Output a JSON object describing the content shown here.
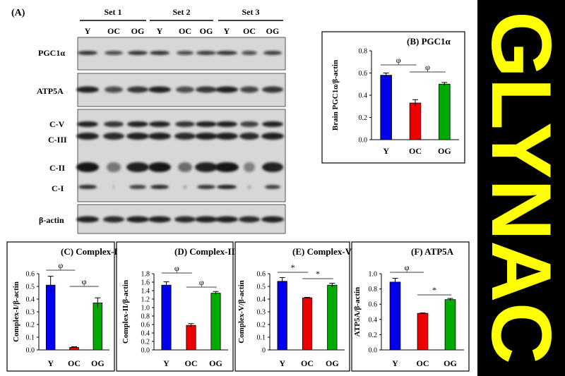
{
  "panel_a_label": "(A)",
  "set_labels": [
    "Set 1",
    "Set 2",
    "Set 3"
  ],
  "lane_labels": [
    "Y",
    "OC",
    "OG",
    "Y",
    "OC",
    "OG",
    "Y",
    "OC",
    "OG"
  ],
  "blot_labels": {
    "pgc1a": "PGC1α",
    "atp5a": "ATP5A",
    "cv": "C-V",
    "ciii": "C-III",
    "cii": "C-II",
    "ci": "C-I",
    "bactin": "β-actin"
  },
  "banner_text": "GLYNAC",
  "colors": {
    "Y": "#0000ee",
    "OC": "#ee0000",
    "OG": "#00aa00",
    "banner_bg": "#000000",
    "banner_text": "#ffff00"
  },
  "chart_data": [
    {
      "type": "bar",
      "title": "(B) PGC1α",
      "ylabel": "Brain PGC1α/β-actin",
      "categories": [
        "Y",
        "OC",
        "OG"
      ],
      "values": [
        0.58,
        0.33,
        0.5
      ],
      "errors": [
        0.02,
        0.03,
        0.015
      ],
      "ylim": [
        0,
        0.8
      ],
      "yticks": [
        "0.0",
        "0.2",
        "0.4",
        "0.6",
        "0.8"
      ],
      "annotations": [
        {
          "between": [
            "Y",
            "OC"
          ],
          "symbol": "φ"
        },
        {
          "between": [
            "OC",
            "OG"
          ],
          "symbol": "φ"
        }
      ]
    },
    {
      "type": "bar",
      "title": "(C) Complex-I",
      "ylabel": "Complex-I/β-actin",
      "categories": [
        "Y",
        "OC",
        "OG"
      ],
      "values": [
        0.51,
        0.02,
        0.37
      ],
      "errors": [
        0.07,
        0.005,
        0.04
      ],
      "ylim": [
        0,
        0.6
      ],
      "yticks": [
        "0.0",
        "0.1",
        "0.2",
        "0.3",
        "0.4",
        "0.5",
        "0.6"
      ],
      "annotations": [
        {
          "between": [
            "Y",
            "OC"
          ],
          "symbol": "φ"
        },
        {
          "between": [
            "OC",
            "OG"
          ],
          "symbol": "φ"
        }
      ]
    },
    {
      "type": "bar",
      "title": "(D) Complex-II",
      "ylabel": "Complex-II/β-actin",
      "categories": [
        "Y",
        "OC",
        "OG"
      ],
      "values": [
        1.53,
        0.58,
        1.34
      ],
      "errors": [
        0.08,
        0.04,
        0.04
      ],
      "ylim": [
        0,
        1.8
      ],
      "yticks": [
        "0.0",
        "0.2",
        "0.4",
        "0.6",
        "0.8",
        "1.0",
        "1.2",
        "1.4",
        "1.6",
        "1.8"
      ],
      "annotations": [
        {
          "between": [
            "Y",
            "OC"
          ],
          "symbol": "φ"
        },
        {
          "between": [
            "OC",
            "OG"
          ],
          "symbol": "φ"
        }
      ]
    },
    {
      "type": "bar",
      "title": "(E) Complex-V",
      "ylabel": "Complex-V/β-actin",
      "categories": [
        "Y",
        "OC",
        "OG"
      ],
      "values": [
        0.54,
        0.41,
        0.51
      ],
      "errors": [
        0.03,
        0.004,
        0.015
      ],
      "ylim": [
        0,
        0.6
      ],
      "yticks": [
        "0",
        "0.1",
        "0.2",
        "0.3",
        "0.4",
        "0.5",
        "0.6"
      ],
      "annotations": [
        {
          "between": [
            "Y",
            "OC"
          ],
          "symbol": "*"
        },
        {
          "between": [
            "OC",
            "OG"
          ],
          "symbol": "*"
        }
      ]
    },
    {
      "type": "bar",
      "title": "(F) ATP5A",
      "ylabel": "ATP5A/β-actin",
      "categories": [
        "Y",
        "OC",
        "OG"
      ],
      "values": [
        0.89,
        0.48,
        0.66
      ],
      "errors": [
        0.05,
        0.005,
        0.015
      ],
      "ylim": [
        0,
        1.0
      ],
      "yticks": [
        "0.0",
        "0.2",
        "0.4",
        "0.6",
        "0.8",
        "1.0"
      ],
      "annotations": [
        {
          "between": [
            "Y",
            "OC"
          ],
          "symbol": "φ"
        },
        {
          "between": [
            "OC",
            "OG"
          ],
          "symbol": "*"
        }
      ]
    }
  ]
}
